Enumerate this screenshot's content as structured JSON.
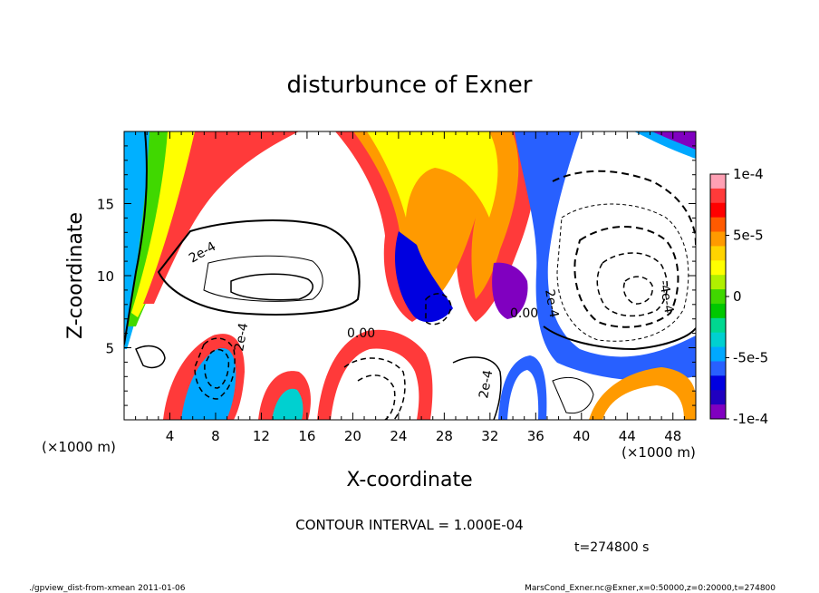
{
  "chart_data": {
    "type": "heatmap",
    "title": "disturbunce of Exner",
    "xlabel": "X-coordinate",
    "ylabel": "Z-coordinate",
    "x_unit": "(×1000 m)",
    "y_unit": "(×1000 m)",
    "xlim": [
      0,
      50
    ],
    "ylim": [
      0,
      20
    ],
    "x_ticks": [
      4,
      8,
      12,
      16,
      20,
      24,
      28,
      32,
      36,
      40,
      44,
      48
    ],
    "y_ticks": [
      5,
      10,
      15
    ],
    "colorbar": {
      "range": [
        -0.0001,
        0.0001
      ],
      "tick_values": [
        0.0001,
        5e-05,
        0,
        -5e-05,
        -0.0001
      ],
      "tick_labels": [
        "1e-4",
        "5e-5",
        "0",
        "-5e-5",
        "-1e-4"
      ],
      "colors": [
        "#ffa0b4",
        "#ff3a3a",
        "#ff0000",
        "#ff5a00",
        "#ff9a00",
        "#ffd400",
        "#ffff00",
        "#b0f000",
        "#40d800",
        "#00c800",
        "#00d890",
        "#00d0d0",
        "#00a8ff",
        "#2860ff",
        "#0000e0",
        "#2000c0",
        "#8000c0"
      ]
    },
    "contour_labels": [
      "2e-4",
      "2e-4",
      "2e-4",
      "0.00",
      "0.00",
      "2e-4",
      "-4e-4",
      "-2e-4"
    ],
    "contour_interval": "CONTOUR INTERVAL = 1.000E-04",
    "time": "t=274800 s",
    "footer_left": "./gpview_dist-from-xmean  2011-01-06",
    "footer_right": "MarsCond_Exner.nc@Exner,x=0:50000,z=0:20000,t=274800"
  }
}
